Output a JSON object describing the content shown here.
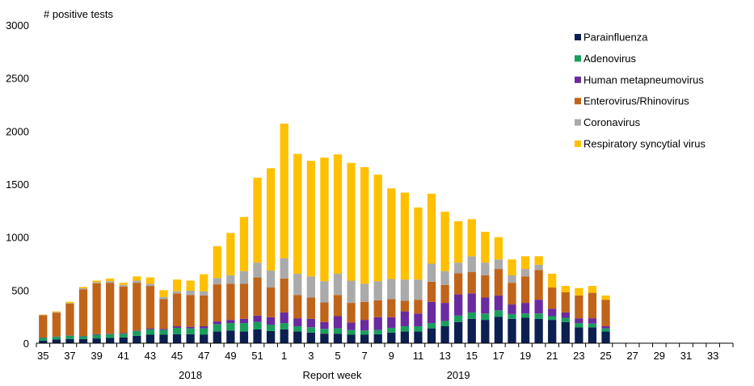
{
  "chart_data": {
    "type": "bar",
    "stacked": true,
    "ylabel": "# positive tests",
    "xlabel": "Report  week",
    "ylim": [
      0,
      3000
    ],
    "yticks": [
      0,
      500,
      1000,
      1500,
      2000,
      2500,
      3000
    ],
    "grid": false,
    "legend_position": "top-right",
    "year_labels": [
      {
        "label": "2018",
        "at_category": "46"
      },
      {
        "label": "2019",
        "at_category": "14"
      }
    ],
    "categories": [
      "35",
      "36",
      "37",
      "38",
      "39",
      "40",
      "41",
      "42",
      "43",
      "44",
      "45",
      "46",
      "47",
      "48",
      "49",
      "50",
      "51",
      "52",
      "1",
      "2",
      "3",
      "4",
      "5",
      "6",
      "7",
      "8",
      "9",
      "10",
      "11",
      "12",
      "13",
      "14",
      "15",
      "16",
      "17",
      "18",
      "19",
      "20",
      "21",
      "22",
      "23",
      "24",
      "25",
      "26",
      "27",
      "28",
      "29",
      "30",
      "31",
      "32",
      "33",
      "34"
    ],
    "tick_labels": [
      "35",
      "37",
      "39",
      "41",
      "43",
      "45",
      "47",
      "49",
      "51",
      "1",
      "3",
      "5",
      "7",
      "9",
      "11",
      "13",
      "15",
      "17",
      "19",
      "21",
      "23",
      "25",
      "27",
      "29",
      "31",
      "33"
    ],
    "series": [
      {
        "name": "Parainfluenza",
        "color": "#0b2050",
        "values": [
          25,
          35,
          40,
          40,
          45,
          50,
          55,
          70,
          80,
          80,
          85,
          85,
          80,
          110,
          120,
          110,
          130,
          115,
          130,
          110,
          100,
          90,
          90,
          80,
          80,
          85,
          100,
          110,
          110,
          140,
          160,
          200,
          230,
          220,
          250,
          230,
          240,
          230,
          220,
          200,
          150,
          150,
          110,
          null,
          null,
          null,
          null,
          null,
          null,
          null,
          null,
          null
        ]
      },
      {
        "name": "Adenovirus",
        "color": "#1a9e5c",
        "values": [
          25,
          25,
          30,
          25,
          35,
          35,
          35,
          45,
          50,
          45,
          60,
          55,
          60,
          70,
          70,
          80,
          70,
          60,
          60,
          50,
          50,
          45,
          50,
          45,
          40,
          40,
          45,
          50,
          50,
          50,
          50,
          60,
          60,
          60,
          60,
          45,
          40,
          50,
          35,
          40,
          40,
          35,
          30,
          null,
          null,
          null,
          null,
          null,
          null,
          null,
          null,
          null
        ]
      },
      {
        "name": "Human metapneumovirus",
        "color": "#6a2aa0",
        "values": [
          3,
          3,
          3,
          3,
          5,
          5,
          5,
          5,
          10,
          10,
          15,
          15,
          20,
          25,
          30,
          40,
          60,
          70,
          100,
          75,
          80,
          65,
          115,
          70,
          100,
          120,
          100,
          140,
          120,
          200,
          170,
          200,
          180,
          150,
          140,
          90,
          100,
          130,
          70,
          50,
          45,
          50,
          20,
          null,
          null,
          null,
          null,
          null,
          null,
          null,
          null,
          null
        ]
      },
      {
        "name": "Enterovirus/Rhinovirus",
        "color": "#c0641a",
        "values": [
          210,
          225,
          300,
          440,
          480,
          480,
          440,
          450,
          400,
          280,
          310,
          300,
          290,
          350,
          340,
          330,
          360,
          280,
          320,
          220,
          200,
          185,
          200,
          185,
          170,
          160,
          170,
          100,
          130,
          190,
          170,
          200,
          200,
          210,
          250,
          205,
          250,
          280,
          200,
          190,
          215,
          240,
          250,
          null,
          null,
          null,
          null,
          null,
          null,
          null,
          null,
          null
        ]
      },
      {
        "name": "Coronavirus",
        "color": "#aaaaaa",
        "values": [
          3,
          5,
          5,
          10,
          10,
          15,
          15,
          20,
          20,
          20,
          20,
          40,
          40,
          60,
          80,
          120,
          140,
          160,
          190,
          200,
          200,
          200,
          200,
          210,
          170,
          180,
          190,
          200,
          190,
          170,
          130,
          100,
          150,
          120,
          90,
          70,
          70,
          50,
          0,
          0,
          0,
          0,
          0,
          null,
          null,
          null,
          null,
          null,
          null,
          null,
          null,
          null
        ]
      },
      {
        "name": "Respiratory syncytial virus",
        "color": "#ffc000",
        "values": [
          4,
          7,
          12,
          12,
          15,
          25,
          20,
          40,
          60,
          65,
          110,
          95,
          160,
          300,
          400,
          510,
          800,
          965,
          1270,
          1130,
          1090,
          1165,
          1125,
          1110,
          1100,
          1005,
          855,
          820,
          680,
          660,
          560,
          390,
          350,
          290,
          210,
          150,
          120,
          80,
          130,
          60,
          70,
          65,
          40,
          null,
          null,
          null,
          null,
          null,
          null,
          null,
          null,
          null
        ]
      }
    ]
  }
}
